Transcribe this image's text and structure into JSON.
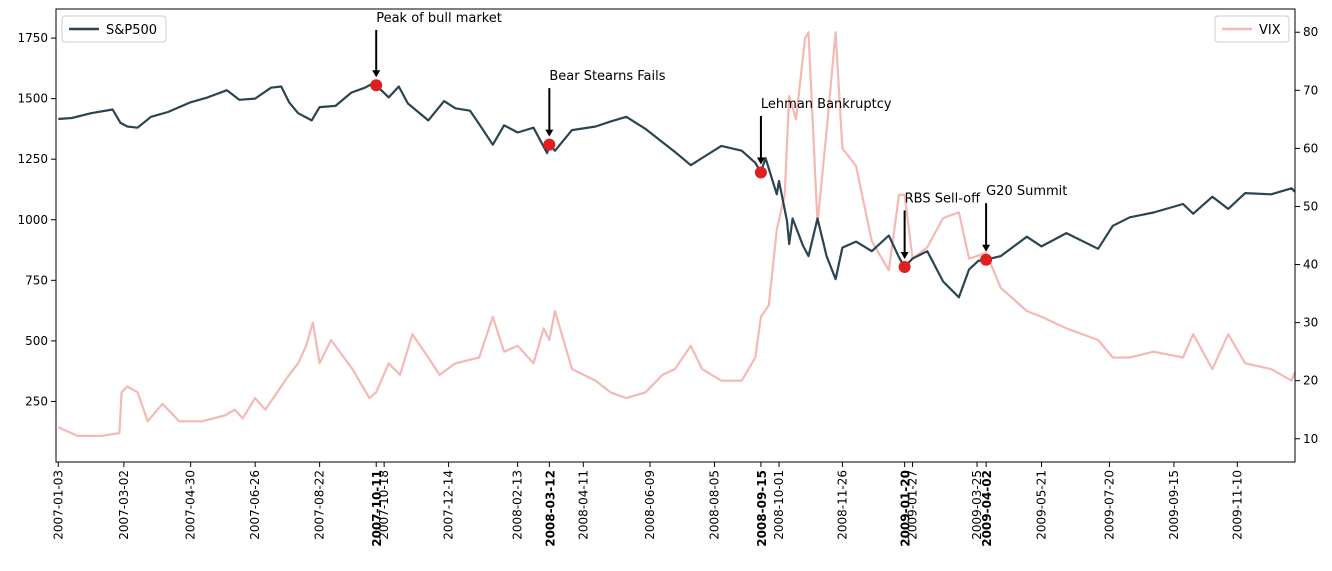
{
  "chart_data": {
    "type": "line",
    "title": "",
    "xlabel": "",
    "ylabel_left": "",
    "ylabel_right": "",
    "xlim": [
      "2007-01-01",
      "2009-12-31"
    ],
    "ylim_left": [
      0,
      1870
    ],
    "ylim_right": [
      6,
      84
    ],
    "yticks_left": [
      250,
      500,
      750,
      1000,
      1250,
      1500,
      1750
    ],
    "yticks_right": [
      10,
      20,
      30,
      40,
      50,
      60,
      70,
      80
    ],
    "xticks": [
      "2007-01-03",
      "2007-03-02",
      "2007-04-30",
      "2007-06-26",
      "2007-08-22",
      "2007-10-18",
      "2007-12-14",
      "2008-02-13",
      "2008-04-11",
      "2008-06-09",
      "2008-08-05",
      "2008-10-01",
      "2008-11-26",
      "2009-01-27",
      "2009-03-25",
      "2009-05-21",
      "2009-07-20",
      "2009-09-15",
      "2009-11-10"
    ],
    "highlight_ticks": [
      "2007-10-11",
      "2008-03-12",
      "2008-09-15",
      "2009-01-20",
      "2009-04-02"
    ],
    "colors": {
      "sp500": "#2a4550",
      "vix": "#f4b9b5",
      "event": "#e02020",
      "highlight_tick": "#d62728"
    },
    "grid": false,
    "legend": [
      {
        "name": "S&P500",
        "position": "upper-left"
      },
      {
        "name": "VIX",
        "position": "upper-right"
      }
    ],
    "series": [
      {
        "name": "S&P500",
        "axis": "left",
        "points": [
          [
            "2007-01-03",
            1416
          ],
          [
            "2007-01-15",
            1420
          ],
          [
            "2007-02-01",
            1440
          ],
          [
            "2007-02-20",
            1455
          ],
          [
            "2007-02-27",
            1400
          ],
          [
            "2007-03-05",
            1385
          ],
          [
            "2007-03-14",
            1380
          ],
          [
            "2007-03-26",
            1425
          ],
          [
            "2007-04-10",
            1445
          ],
          [
            "2007-04-30",
            1485
          ],
          [
            "2007-05-15",
            1505
          ],
          [
            "2007-06-01",
            1535
          ],
          [
            "2007-06-12",
            1495
          ],
          [
            "2007-06-26",
            1500
          ],
          [
            "2007-07-10",
            1545
          ],
          [
            "2007-07-19",
            1550
          ],
          [
            "2007-07-26",
            1485
          ],
          [
            "2007-08-03",
            1440
          ],
          [
            "2007-08-15",
            1410
          ],
          [
            "2007-08-22",
            1465
          ],
          [
            "2007-09-05",
            1470
          ],
          [
            "2007-09-19",
            1525
          ],
          [
            "2007-10-01",
            1545
          ],
          [
            "2007-10-09",
            1565
          ],
          [
            "2007-10-11",
            1555
          ],
          [
            "2007-10-22",
            1505
          ],
          [
            "2007-10-31",
            1550
          ],
          [
            "2007-11-08",
            1480
          ],
          [
            "2007-11-26",
            1410
          ],
          [
            "2007-12-10",
            1490
          ],
          [
            "2007-12-20",
            1460
          ],
          [
            "2008-01-02",
            1450
          ],
          [
            "2008-01-10",
            1395
          ],
          [
            "2008-01-22",
            1310
          ],
          [
            "2008-02-01",
            1390
          ],
          [
            "2008-02-13",
            1360
          ],
          [
            "2008-02-27",
            1380
          ],
          [
            "2008-03-10",
            1275
          ],
          [
            "2008-03-12",
            1310
          ],
          [
            "2008-03-17",
            1285
          ],
          [
            "2008-04-01",
            1370
          ],
          [
            "2008-04-22",
            1385
          ],
          [
            "2008-05-05",
            1405
          ],
          [
            "2008-05-19",
            1425
          ],
          [
            "2008-06-05",
            1375
          ],
          [
            "2008-06-20",
            1320
          ],
          [
            "2008-07-01",
            1280
          ],
          [
            "2008-07-15",
            1225
          ],
          [
            "2008-07-25",
            1255
          ],
          [
            "2008-08-11",
            1305
          ],
          [
            "2008-08-29",
            1285
          ],
          [
            "2008-09-10",
            1235
          ],
          [
            "2008-09-15",
            1195
          ],
          [
            "2008-09-19",
            1255
          ],
          [
            "2008-09-29",
            1105
          ],
          [
            "2008-10-01",
            1160
          ],
          [
            "2008-10-08",
            995
          ],
          [
            "2008-10-10",
            900
          ],
          [
            "2008-10-13",
            1005
          ],
          [
            "2008-10-22",
            895
          ],
          [
            "2008-10-27",
            850
          ],
          [
            "2008-11-04",
            1005
          ],
          [
            "2008-11-12",
            850
          ],
          [
            "2008-11-20",
            755
          ],
          [
            "2008-11-26",
            885
          ],
          [
            "2008-12-08",
            910
          ],
          [
            "2008-12-22",
            870
          ],
          [
            "2009-01-06",
            935
          ],
          [
            "2009-01-15",
            845
          ],
          [
            "2009-01-20",
            805
          ],
          [
            "2009-01-27",
            840
          ],
          [
            "2009-02-09",
            870
          ],
          [
            "2009-02-23",
            745
          ],
          [
            "2009-03-09",
            680
          ],
          [
            "2009-03-18",
            795
          ],
          [
            "2009-03-26",
            830
          ],
          [
            "2009-04-02",
            835
          ],
          [
            "2009-04-15",
            850
          ],
          [
            "2009-05-08",
            930
          ],
          [
            "2009-05-21",
            890
          ],
          [
            "2009-06-12",
            945
          ],
          [
            "2009-07-10",
            880
          ],
          [
            "2009-07-23",
            975
          ],
          [
            "2009-08-07",
            1010
          ],
          [
            "2009-08-28",
            1030
          ],
          [
            "2009-09-23",
            1065
          ],
          [
            "2009-10-02",
            1025
          ],
          [
            "2009-10-19",
            1095
          ],
          [
            "2009-11-02",
            1045
          ],
          [
            "2009-11-17",
            1110
          ],
          [
            "2009-12-10",
            1105
          ],
          [
            "2009-12-28",
            1130
          ],
          [
            "2009-12-31",
            1115
          ]
        ]
      },
      {
        "name": "VIX",
        "axis": "right",
        "points": [
          [
            "2007-01-03",
            12
          ],
          [
            "2007-01-20",
            10.5
          ],
          [
            "2007-02-10",
            10.5
          ],
          [
            "2007-02-26",
            11
          ],
          [
            "2007-02-28",
            18
          ],
          [
            "2007-03-05",
            19
          ],
          [
            "2007-03-14",
            18
          ],
          [
            "2007-03-23",
            13
          ],
          [
            "2007-04-05",
            16
          ],
          [
            "2007-04-20",
            13
          ],
          [
            "2007-05-10",
            13
          ],
          [
            "2007-05-30",
            14
          ],
          [
            "2007-06-08",
            15
          ],
          [
            "2007-06-15",
            13.5
          ],
          [
            "2007-06-26",
            17
          ],
          [
            "2007-07-05",
            15
          ],
          [
            "2007-07-26",
            21
          ],
          [
            "2007-08-03",
            23
          ],
          [
            "2007-08-10",
            26
          ],
          [
            "2007-08-16",
            30
          ],
          [
            "2007-08-22",
            23
          ],
          [
            "2007-09-01",
            27
          ],
          [
            "2007-09-20",
            22
          ],
          [
            "2007-10-05",
            17
          ],
          [
            "2007-10-11",
            18
          ],
          [
            "2007-10-22",
            23
          ],
          [
            "2007-11-01",
            21
          ],
          [
            "2007-11-12",
            28
          ],
          [
            "2007-11-26",
            24
          ],
          [
            "2007-12-06",
            21
          ],
          [
            "2007-12-20",
            23
          ],
          [
            "2008-01-10",
            24
          ],
          [
            "2008-01-22",
            31
          ],
          [
            "2008-02-01",
            25
          ],
          [
            "2008-02-13",
            26
          ],
          [
            "2008-02-27",
            23
          ],
          [
            "2008-03-07",
            29
          ],
          [
            "2008-03-12",
            27
          ],
          [
            "2008-03-17",
            32
          ],
          [
            "2008-04-01",
            22
          ],
          [
            "2008-04-22",
            20
          ],
          [
            "2008-05-05",
            18
          ],
          [
            "2008-05-19",
            17
          ],
          [
            "2008-06-05",
            18
          ],
          [
            "2008-06-20",
            21
          ],
          [
            "2008-07-01",
            22
          ],
          [
            "2008-07-15",
            26
          ],
          [
            "2008-07-25",
            22
          ],
          [
            "2008-08-11",
            20
          ],
          [
            "2008-08-29",
            20
          ],
          [
            "2008-09-10",
            24
          ],
          [
            "2008-09-15",
            31
          ],
          [
            "2008-09-22",
            33
          ],
          [
            "2008-09-29",
            46
          ],
          [
            "2008-10-06",
            52
          ],
          [
            "2008-10-10",
            69
          ],
          [
            "2008-10-16",
            65
          ],
          [
            "2008-10-24",
            79
          ],
          [
            "2008-10-27",
            80
          ],
          [
            "2008-11-04",
            47
          ],
          [
            "2008-11-12",
            63
          ],
          [
            "2008-11-20",
            80
          ],
          [
            "2008-11-26",
            60
          ],
          [
            "2008-12-08",
            57
          ],
          [
            "2008-12-22",
            44
          ],
          [
            "2009-01-06",
            39
          ],
          [
            "2009-01-15",
            52
          ],
          [
            "2009-01-20",
            52
          ],
          [
            "2009-01-27",
            41
          ],
          [
            "2009-02-09",
            43
          ],
          [
            "2009-02-23",
            48
          ],
          [
            "2009-03-09",
            49
          ],
          [
            "2009-03-18",
            41
          ],
          [
            "2009-04-02",
            42
          ],
          [
            "2009-04-15",
            36
          ],
          [
            "2009-05-08",
            32
          ],
          [
            "2009-05-21",
            31
          ],
          [
            "2009-06-12",
            29
          ],
          [
            "2009-07-10",
            27
          ],
          [
            "2009-07-23",
            24
          ],
          [
            "2009-08-07",
            24
          ],
          [
            "2009-08-28",
            25
          ],
          [
            "2009-09-23",
            24
          ],
          [
            "2009-10-02",
            28
          ],
          [
            "2009-10-19",
            22
          ],
          [
            "2009-11-02",
            28
          ],
          [
            "2009-11-17",
            23
          ],
          [
            "2009-12-10",
            22
          ],
          [
            "2009-12-28",
            20
          ],
          [
            "2009-12-31",
            21.5
          ]
        ]
      }
    ],
    "events": [
      {
        "date": "2007-10-11",
        "value": 1555,
        "label": "Peak of bull market",
        "text_value": 1800
      },
      {
        "date": "2008-03-12",
        "value": 1310,
        "label": "Bear Stearns Fails",
        "text_value": 1560
      },
      {
        "date": "2008-09-15",
        "value": 1195,
        "label": "Lehman Bankruptcy",
        "text_value": 1445
      },
      {
        "date": "2009-01-20",
        "value": 805,
        "label": "RBS Sell-off",
        "text_value": 1055
      },
      {
        "date": "2009-04-02",
        "value": 835,
        "label": "G20 Summit",
        "text_value": 1085
      }
    ]
  }
}
